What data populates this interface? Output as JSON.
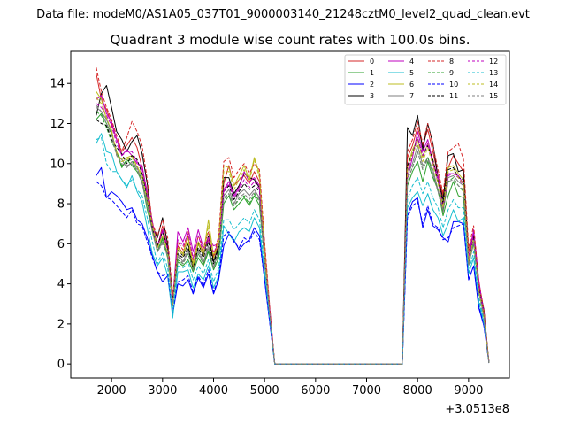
{
  "figure": {
    "suptitle": "Data file: modeM0/AS1A05_037T01_9000003140_21248cztM0_level2_quad_clean.evt"
  },
  "chart_data": {
    "type": "line",
    "title": "Quadrant 3 module wise count rates with 100.0s bins.",
    "xlabel": "",
    "ylabel": "",
    "x_offset_label": "+3.0513e8",
    "xlim": [
      1200,
      9800
    ],
    "ylim": [
      -0.7,
      15.6
    ],
    "xticks": [
      2000,
      3000,
      4000,
      5000,
      6000,
      7000,
      8000,
      9000
    ],
    "xtick_labels": [
      "2000",
      "3000",
      "4000",
      "5000",
      "6000",
      "7000",
      "8000",
      "9000"
    ],
    "yticks": [
      0,
      2,
      4,
      6,
      8,
      10,
      12,
      14
    ],
    "ytick_labels": [
      "0",
      "2",
      "4",
      "6",
      "8",
      "10",
      "12",
      "14"
    ],
    "legend_position": "top-right",
    "legend_columns": 4,
    "x_segment1": [
      1700,
      1800,
      1900,
      2000,
      2100,
      2200,
      2300,
      2400,
      2500,
      2600,
      2700,
      2800,
      2900,
      3000,
      3100,
      3200,
      3300,
      3400,
      3500,
      3600,
      3700,
      3800,
      3900,
      4000,
      4100,
      4200,
      4300,
      4400,
      4500,
      4600,
      4700,
      4800,
      4900,
      5000,
      5100,
      5200
    ],
    "x_segment2": [
      7700,
      7800,
      7900,
      8000,
      8100,
      8200,
      8300,
      8400,
      8500,
      8600,
      8700,
      8800,
      8900,
      9000,
      9100,
      9200,
      9300,
      9400
    ],
    "series": [
      {
        "name": "0",
        "color": "#d62728",
        "dash": false,
        "seg1": [
          14.5,
          13.2,
          12.7,
          12.0,
          11.2,
          10.6,
          10.9,
          11.3,
          10.8,
          9.8,
          8.6,
          7.1,
          5.8,
          6.9,
          5.8,
          3.3,
          5.9,
          5.5,
          6.4,
          5.0,
          6.1,
          5.6,
          6.2,
          5.3,
          6.0,
          9.0,
          9.9,
          8.9,
          9.2,
          9.4,
          9.0,
          9.6,
          9.1,
          5.9,
          2.8,
          0.0
        ],
        "seg2": [
          0.0,
          10.3,
          10.9,
          11.8,
          10.9,
          11.7,
          10.6,
          9.4,
          8.4,
          9.8,
          10.4,
          10.0,
          9.6,
          5.6,
          6.6,
          4.0,
          2.6,
          0.05
        ]
      },
      {
        "name": "1",
        "color": "#2ca02c",
        "dash": false,
        "seg1": [
          12.2,
          12.5,
          12.0,
          11.5,
          10.6,
          9.8,
          10.2,
          9.9,
          9.6,
          9.1,
          7.7,
          6.7,
          5.6,
          6.3,
          5.3,
          3.0,
          5.1,
          4.9,
          5.2,
          4.6,
          5.3,
          4.9,
          5.6,
          4.7,
          5.3,
          8.0,
          8.4,
          7.7,
          8.0,
          8.3,
          7.9,
          8.4,
          7.9,
          5.2,
          2.4,
          0.0
        ],
        "seg2": [
          0.0,
          8.9,
          9.6,
          10.1,
          9.1,
          10.1,
          9.3,
          8.7,
          7.4,
          8.4,
          9.1,
          8.4,
          8.3,
          5.0,
          6.0,
          3.7,
          2.3,
          0.05
        ]
      },
      {
        "name": "2",
        "color": "#0000ff",
        "dash": false,
        "seg1": [
          9.4,
          9.8,
          8.3,
          8.6,
          8.4,
          8.1,
          7.7,
          7.8,
          7.2,
          7.0,
          6.3,
          5.4,
          4.6,
          4.1,
          4.4,
          2.5,
          4.0,
          3.9,
          4.2,
          3.5,
          4.3,
          3.8,
          4.5,
          3.5,
          4.2,
          5.9,
          6.5,
          6.2,
          5.7,
          6.0,
          6.2,
          6.8,
          6.4,
          4.2,
          2.1,
          0.0
        ],
        "seg2": [
          0.0,
          7.4,
          8.1,
          8.3,
          6.8,
          7.7,
          6.9,
          6.7,
          6.3,
          6.1,
          7.1,
          7.1,
          7.0,
          4.2,
          4.9,
          2.8,
          1.9,
          0.05
        ]
      },
      {
        "name": "3",
        "color": "#000000",
        "dash": false,
        "seg1": [
          12.4,
          13.5,
          13.9,
          12.8,
          11.6,
          11.2,
          10.6,
          11.1,
          11.4,
          10.5,
          9.0,
          6.9,
          6.3,
          7.3,
          6.0,
          3.2,
          5.7,
          5.4,
          6.0,
          4.8,
          6.0,
          5.4,
          6.4,
          5.1,
          5.9,
          9.3,
          9.3,
          8.5,
          8.9,
          9.5,
          9.3,
          9.2,
          8.8,
          5.6,
          2.7,
          0.0
        ],
        "seg2": [
          0.0,
          11.8,
          11.4,
          12.4,
          10.7,
          12.0,
          11.0,
          9.3,
          8.2,
          10.4,
          10.5,
          9.6,
          9.7,
          5.3,
          6.6,
          4.0,
          2.7,
          0.05
        ]
      },
      {
        "name": "4",
        "color": "#bf00bf",
        "dash": false,
        "seg1": [
          13.2,
          13.4,
          12.5,
          12.1,
          11.2,
          10.4,
          10.7,
          10.4,
          10.0,
          9.9,
          8.5,
          7.1,
          5.9,
          6.7,
          5.8,
          3.1,
          6.6,
          6.1,
          6.8,
          5.6,
          6.7,
          5.8,
          6.3,
          5.9,
          6.0,
          8.7,
          9.1,
          8.4,
          8.8,
          9.6,
          9.1,
          9.3,
          8.9,
          5.7,
          2.8,
          0.0
        ],
        "seg2": [
          0.0,
          9.3,
          10.3,
          11.6,
          10.6,
          11.2,
          10.1,
          9.4,
          7.6,
          9.5,
          9.5,
          9.4,
          9.0,
          5.3,
          6.7,
          4.2,
          2.5,
          0.05
        ]
      },
      {
        "name": "5",
        "color": "#17becf",
        "dash": false,
        "seg1": [
          11.0,
          11.5,
          10.6,
          10.5,
          9.6,
          9.2,
          8.8,
          9.4,
          8.6,
          8.1,
          6.8,
          5.5,
          4.9,
          5.3,
          4.4,
          2.3,
          4.6,
          4.6,
          4.7,
          3.8,
          4.5,
          4.2,
          4.9,
          3.8,
          4.4,
          6.9,
          6.5,
          6.1,
          6.6,
          6.8,
          6.6,
          7.3,
          6.8,
          4.5,
          2.2,
          0.0
        ],
        "seg2": [
          0.0,
          7.8,
          8.3,
          8.6,
          7.9,
          8.5,
          7.7,
          7.3,
          6.4,
          7.0,
          7.7,
          7.1,
          7.3,
          4.5,
          5.3,
          3.1,
          2.0,
          0.05
        ]
      },
      {
        "name": "6",
        "color": "#bcbd22",
        "dash": false,
        "seg1": [
          13.6,
          13.2,
          12.2,
          11.7,
          10.4,
          10.2,
          10.3,
          10.4,
          9.8,
          9.5,
          8.4,
          7.0,
          5.9,
          6.4,
          5.7,
          3.0,
          5.8,
          5.5,
          6.3,
          5.0,
          6.1,
          5.5,
          7.2,
          5.4,
          6.2,
          9.9,
          9.8,
          8.9,
          9.4,
          9.9,
          9.2,
          10.3,
          9.5,
          5.7,
          2.7,
          0.0
        ],
        "seg2": [
          0.0,
          9.8,
          10.7,
          11.2,
          10.3,
          11.0,
          10.1,
          9.2,
          7.9,
          9.8,
          9.9,
          9.5,
          9.2,
          5.2,
          6.3,
          3.8,
          2.5,
          0.05
        ]
      },
      {
        "name": "7",
        "color": "#7f7f7f",
        "dash": false,
        "seg1": [
          12.8,
          12.6,
          12.2,
          11.6,
          10.5,
          10.2,
          9.8,
          10.1,
          9.8,
          9.1,
          8.0,
          6.6,
          5.6,
          6.1,
          5.5,
          2.9,
          5.5,
          5.1,
          5.7,
          4.7,
          5.7,
          5.1,
          5.9,
          4.8,
          5.7,
          8.4,
          8.7,
          8.0,
          8.5,
          8.7,
          8.4,
          8.7,
          8.3,
          5.2,
          2.5,
          0.0
        ],
        "seg2": [
          0.0,
          9.4,
          10.0,
          10.9,
          9.9,
          10.3,
          9.7,
          8.7,
          7.7,
          9.3,
          9.4,
          9.1,
          8.9,
          5.0,
          6.2,
          3.7,
          2.4,
          0.05
        ]
      },
      {
        "name": "8",
        "color": "#d62728",
        "dash": true,
        "seg1": [
          14.8,
          13.6,
          12.8,
          12.2,
          11.4,
          10.6,
          11.3,
          12.1,
          11.6,
          10.9,
          9.2,
          7.0,
          6.4,
          7.2,
          6.3,
          3.4,
          6.1,
          5.7,
          6.6,
          5.2,
          6.4,
          5.8,
          6.6,
          5.4,
          6.4,
          10.1,
          10.3,
          9.3,
          9.7,
          10.0,
          9.5,
          10.0,
          9.7,
          6.1,
          2.9,
          0.0
        ],
        "seg2": [
          0.0,
          10.6,
          11.2,
          12.1,
          11.0,
          12.0,
          10.9,
          9.7,
          8.5,
          10.6,
          10.8,
          11.0,
          10.2,
          5.8,
          6.9,
          4.1,
          2.7,
          0.05
        ]
      },
      {
        "name": "9",
        "color": "#2ca02c",
        "dash": true,
        "seg1": [
          12.6,
          12.4,
          11.8,
          11.1,
          10.6,
          9.9,
          10.1,
          10.2,
          9.6,
          9.3,
          8.1,
          6.8,
          5.7,
          6.2,
          5.5,
          3.0,
          5.2,
          5.0,
          5.5,
          4.7,
          5.5,
          5.0,
          5.7,
          4.8,
          5.5,
          8.3,
          8.5,
          7.9,
          8.2,
          8.4,
          8.0,
          8.5,
          8.1,
          5.3,
          2.5,
          0.0
        ],
        "seg2": [
          0.0,
          9.2,
          9.8,
          10.6,
          9.7,
          10.3,
          9.5,
          8.6,
          7.6,
          9.1,
          9.3,
          8.9,
          8.6,
          4.9,
          6.1,
          3.6,
          2.3,
          0.05
        ]
      },
      {
        "name": "10",
        "color": "#0000ff",
        "dash": true,
        "seg1": [
          9.1,
          8.9,
          8.3,
          8.2,
          7.9,
          7.6,
          7.3,
          7.7,
          7.0,
          6.9,
          6.1,
          5.3,
          4.6,
          4.4,
          4.5,
          2.6,
          4.1,
          4.2,
          4.4,
          3.6,
          4.4,
          3.9,
          4.7,
          3.6,
          4.3,
          6.4,
          6.6,
          6.1,
          5.8,
          6.3,
          6.1,
          6.6,
          6.2,
          4.2,
          2.1,
          0.0
        ],
        "seg2": [
          0.0,
          7.3,
          7.9,
          8.1,
          7.0,
          7.9,
          7.0,
          6.8,
          6.2,
          6.3,
          6.8,
          6.9,
          7.0,
          4.2,
          4.9,
          2.9,
          1.9,
          0.05
        ]
      },
      {
        "name": "11",
        "color": "#000000",
        "dash": true,
        "seg1": [
          12.2,
          12.0,
          11.9,
          11.2,
          10.8,
          10.5,
          10.0,
          10.4,
          10.2,
          9.5,
          8.3,
          6.8,
          5.9,
          6.6,
          5.8,
          3.1,
          5.5,
          5.3,
          5.8,
          4.8,
          5.8,
          5.3,
          6.1,
          5.0,
          5.8,
          8.6,
          8.9,
          8.2,
          8.6,
          9.0,
          8.7,
          8.9,
          8.6,
          5.4,
          2.6,
          0.0
        ],
        "seg2": [
          0.0,
          9.9,
          10.5,
          11.3,
          10.4,
          10.9,
          10.2,
          9.1,
          8.0,
          9.7,
          9.8,
          9.3,
          9.2,
          5.1,
          6.4,
          3.8,
          2.5,
          0.05
        ]
      },
      {
        "name": "12",
        "color": "#bf00bf",
        "dash": true,
        "seg1": [
          13.0,
          12.8,
          12.4,
          11.9,
          11.0,
          10.4,
          10.6,
          10.6,
          10.1,
          9.7,
          8.4,
          7.0,
          5.8,
          6.6,
          5.7,
          3.1,
          6.2,
          5.9,
          6.5,
          5.3,
          6.4,
          5.6,
          6.2,
          5.6,
          6.0,
          8.6,
          9.0,
          8.3,
          8.7,
          9.2,
          8.8,
          9.1,
          8.7,
          5.5,
          2.7,
          0.0
        ],
        "seg2": [
          0.0,
          9.6,
          10.4,
          11.3,
          10.4,
          11.0,
          10.0,
          9.2,
          7.8,
          9.4,
          9.5,
          9.3,
          8.9,
          5.2,
          6.5,
          4.0,
          2.5,
          0.05
        ]
      },
      {
        "name": "13",
        "color": "#17becf",
        "dash": true,
        "seg1": [
          11.2,
          11.3,
          10.0,
          9.6,
          9.6,
          9.2,
          8.9,
          9.2,
          8.7,
          8.4,
          7.3,
          6.1,
          5.0,
          5.6,
          4.8,
          2.6,
          4.9,
          4.8,
          5.1,
          4.2,
          4.9,
          4.5,
          5.2,
          4.1,
          4.8,
          7.2,
          7.2,
          6.7,
          7.0,
          7.3,
          7.0,
          7.7,
          7.2,
          4.7,
          2.3,
          0.0
        ],
        "seg2": [
          0.0,
          8.2,
          8.9,
          9.3,
          8.5,
          9.1,
          8.3,
          7.8,
          6.8,
          7.7,
          8.2,
          7.8,
          7.8,
          4.6,
          5.6,
          3.3,
          2.1,
          0.05
        ]
      },
      {
        "name": "14",
        "color": "#bcbd22",
        "dash": true,
        "seg1": [
          13.3,
          13.0,
          12.3,
          11.6,
          10.6,
          10.1,
          10.2,
          10.3,
          9.9,
          9.3,
          8.2,
          6.9,
          5.8,
          6.4,
          5.6,
          3.0,
          5.7,
          5.4,
          6.1,
          4.9,
          6.0,
          5.4,
          6.9,
          5.3,
          6.0,
          9.6,
          9.6,
          8.7,
          9.2,
          9.7,
          9.1,
          10.2,
          9.3,
          5.6,
          2.6,
          0.0
        ],
        "seg2": [
          0.0,
          9.7,
          10.5,
          11.0,
          10.1,
          10.8,
          9.9,
          9.0,
          7.8,
          9.6,
          9.7,
          9.3,
          9.0,
          5.1,
          6.2,
          3.7,
          2.4,
          0.05
        ]
      },
      {
        "name": "15",
        "color": "#7f7f7f",
        "dash": true,
        "seg1": [
          12.9,
          12.6,
          12.0,
          11.4,
          10.4,
          10.0,
          9.9,
          10.0,
          9.7,
          9.0,
          7.9,
          6.6,
          5.6,
          6.0,
          5.4,
          2.9,
          5.4,
          5.0,
          5.6,
          4.7,
          5.6,
          5.0,
          5.8,
          4.8,
          5.6,
          8.2,
          8.5,
          7.9,
          8.3,
          8.5,
          8.2,
          8.6,
          8.2,
          5.2,
          2.5,
          0.0
        ],
        "seg2": [
          0.0,
          9.2,
          9.8,
          10.6,
          9.7,
          10.2,
          9.5,
          8.6,
          7.6,
          9.1,
          9.2,
          8.9,
          8.7,
          4.9,
          6.1,
          3.6,
          2.3,
          0.05
        ]
      }
    ]
  }
}
